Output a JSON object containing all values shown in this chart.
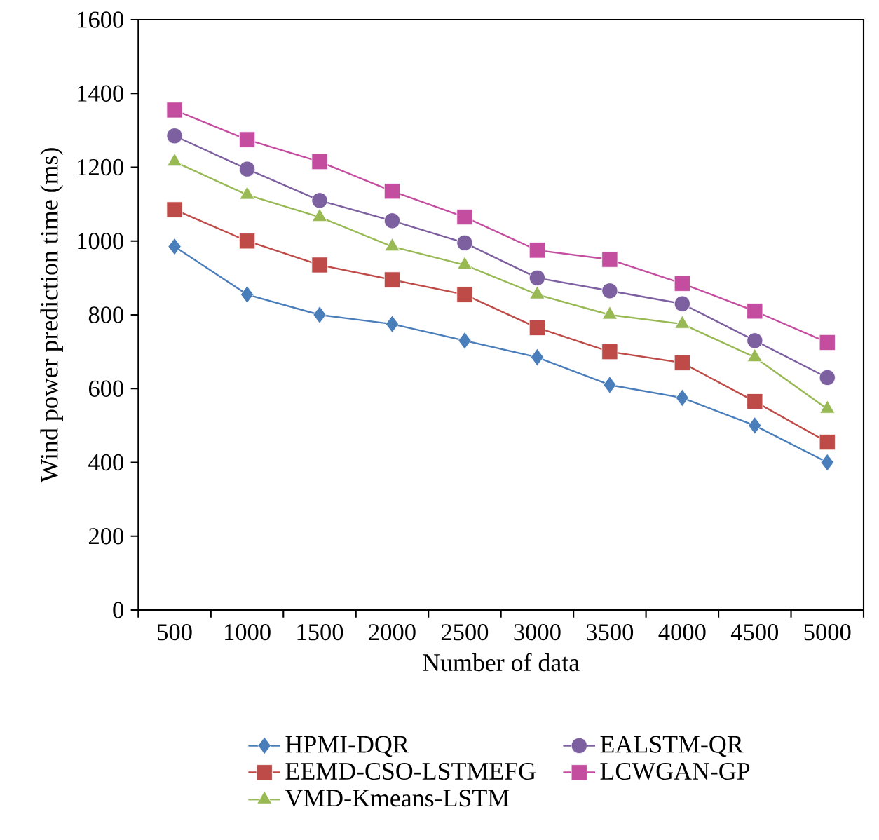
{
  "chart_data": {
    "type": "line",
    "xlabel": "Number of data",
    "ylabel": "Wind power prediction time (ms)",
    "categories": [
      "500",
      "1000",
      "1500",
      "2000",
      "2500",
      "3000",
      "3500",
      "4000",
      "4500",
      "5000"
    ],
    "series": [
      {
        "name": "HPMI-DQR",
        "color": "#4a7ebb",
        "marker": "diamond",
        "values": [
          985,
          855,
          800,
          775,
          730,
          685,
          610,
          575,
          500,
          400
        ]
      },
      {
        "name": "EEMD-CSO-LSTMEFG",
        "color": "#be4b48",
        "marker": "square",
        "values": [
          1085,
          1000,
          935,
          895,
          855,
          765,
          700,
          670,
          565,
          455
        ]
      },
      {
        "name": "VMD-Kmeans-LSTM",
        "color": "#98b954",
        "marker": "triangle",
        "values": [
          1215,
          1125,
          1065,
          985,
          935,
          855,
          800,
          775,
          685,
          545
        ]
      },
      {
        "name": "EALSTM-QR",
        "color": "#7d60a0",
        "marker": "circle",
        "values": [
          1285,
          1195,
          1110,
          1055,
          995,
          900,
          865,
          830,
          730,
          630
        ]
      },
      {
        "name": "LCWGAN-GP",
        "color": "#c44da0",
        "marker": "square",
        "values": [
          1355,
          1275,
          1215,
          1135,
          1065,
          975,
          950,
          885,
          810,
          725
        ]
      }
    ],
    "ylim": [
      0,
      1600
    ],
    "yticks": [
      0,
      200,
      400,
      600,
      800,
      1000,
      1200,
      1400,
      1600
    ],
    "grid": false,
    "legend": "bottom",
    "line_style": "solid"
  }
}
